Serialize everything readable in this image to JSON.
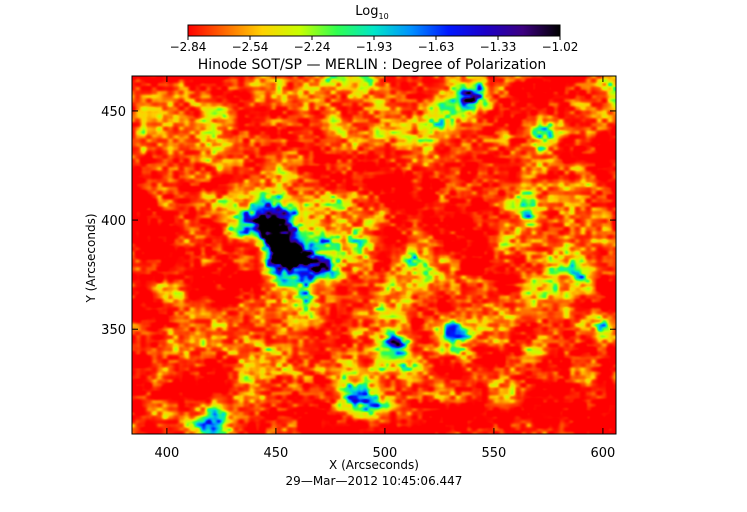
{
  "chart_data": {
    "type": "heatmap",
    "title": "Hinode SOT/SP — MERLIN : Degree of Polarization",
    "colorbar": {
      "label_base": "Log",
      "label_sub": "10",
      "ticks": [
        "−2.84",
        "−2.54",
        "−2.24",
        "−1.93",
        "−1.63",
        "−1.33",
        "−1.02"
      ],
      "range": [
        -2.84,
        -1.02
      ],
      "colors": [
        "#ff0000",
        "#ff6a00",
        "#ffd200",
        "#c8ff00",
        "#30ff50",
        "#00e6c8",
        "#0090ff",
        "#0018ff",
        "#1c00c8",
        "#3c0080",
        "#000000"
      ]
    },
    "xlabel": "X (Arcseconds)",
    "ylabel": "Y (Arcseconds)",
    "xlim": [
      384,
      606
    ],
    "ylim": [
      302,
      466
    ],
    "xticks": [
      400,
      450,
      500,
      550,
      600
    ],
    "yticks": [
      350,
      400,
      450
    ],
    "features": [
      {
        "x": 455,
        "y": 383,
        "strength": 1.0
      },
      {
        "x": 448,
        "y": 400,
        "strength": 0.85
      },
      {
        "x": 470,
        "y": 378,
        "strength": 0.6
      },
      {
        "x": 462,
        "y": 360,
        "strength": 0.5
      },
      {
        "x": 432,
        "y": 398,
        "strength": 0.45
      },
      {
        "x": 505,
        "y": 342,
        "strength": 0.6
      },
      {
        "x": 482,
        "y": 318,
        "strength": 0.6
      },
      {
        "x": 495,
        "y": 312,
        "strength": 0.5
      },
      {
        "x": 420,
        "y": 310,
        "strength": 0.4
      },
      {
        "x": 532,
        "y": 345,
        "strength": 0.45
      },
      {
        "x": 540,
        "y": 455,
        "strength": 0.55
      },
      {
        "x": 525,
        "y": 445,
        "strength": 0.4
      },
      {
        "x": 575,
        "y": 440,
        "strength": 0.5
      },
      {
        "x": 480,
        "y": 440,
        "strength": 0.35
      },
      {
        "x": 600,
        "y": 350,
        "strength": 0.4
      },
      {
        "x": 590,
        "y": 375,
        "strength": 0.35
      },
      {
        "x": 555,
        "y": 325,
        "strength": 0.35
      },
      {
        "x": 405,
        "y": 365,
        "strength": 0.3
      },
      {
        "x": 512,
        "y": 385,
        "strength": 0.3
      },
      {
        "x": 565,
        "y": 405,
        "strength": 0.3
      }
    ]
  },
  "timestamp": "29—Mar—2012 10:45:06.447"
}
